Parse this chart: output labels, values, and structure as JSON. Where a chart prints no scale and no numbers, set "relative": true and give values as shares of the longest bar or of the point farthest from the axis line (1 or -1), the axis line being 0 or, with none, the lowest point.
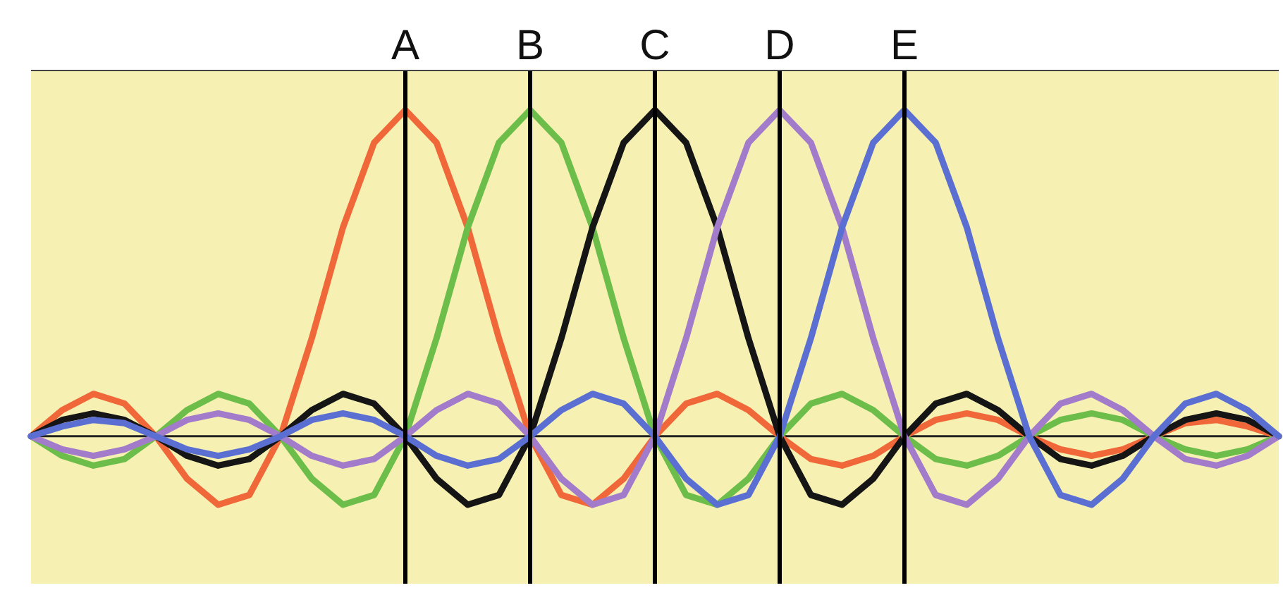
{
  "chart_data": {
    "type": "line",
    "relative": true,
    "tick_labels": "x",
    "marker": "none",
    "line_style": "solid",
    "categories": [
      null,
      null,
      null,
      null,
      null,
      null,
      null,
      null,
      null,
      null,
      null,
      null,
      "A",
      null,
      null,
      null,
      "B",
      null,
      null,
      null,
      "C",
      null,
      null,
      null,
      "D",
      null,
      null,
      null,
      "E",
      null,
      null,
      null,
      null,
      null,
      null,
      null,
      null,
      null,
      null,
      null,
      null
    ],
    "series": [
      {
        "color": "#f0683a",
        "values": [
          0,
          0.08,
          0.13,
          0.1,
          0,
          -0.13,
          -0.21,
          -0.18,
          0,
          0.3,
          0.64,
          0.9,
          1,
          0.9,
          0.64,
          0.3,
          0,
          -0.18,
          -0.21,
          -0.13,
          0,
          0.1,
          0.13,
          0.08,
          0,
          -0.07,
          -0.09,
          -0.06,
          0,
          0.05,
          0.07,
          0.05,
          0,
          -0.04,
          -0.06,
          -0.04,
          0,
          0.04,
          0.05,
          0.03,
          0
        ]
      },
      {
        "color": "#6cbd4a",
        "values": [
          0,
          -0.06,
          -0.09,
          -0.07,
          0,
          0.08,
          0.13,
          0.1,
          0,
          -0.13,
          -0.21,
          -0.18,
          0,
          0.3,
          0.64,
          0.9,
          1,
          0.9,
          0.64,
          0.3,
          0,
          -0.18,
          -0.21,
          -0.13,
          0,
          0.1,
          0.13,
          0.08,
          0,
          -0.07,
          -0.09,
          -0.06,
          0,
          0.05,
          0.07,
          0.05,
          0,
          -0.04,
          -0.06,
          -0.04,
          0
        ]
      },
      {
        "color": "#151515",
        "values": [
          0,
          0.05,
          0.07,
          0.05,
          0,
          -0.06,
          -0.09,
          -0.07,
          0,
          0.08,
          0.13,
          0.1,
          0,
          -0.13,
          -0.21,
          -0.18,
          0,
          0.3,
          0.64,
          0.9,
          1,
          0.9,
          0.64,
          0.3,
          0,
          -0.18,
          -0.21,
          -0.13,
          0,
          0.1,
          0.13,
          0.08,
          0,
          -0.07,
          -0.09,
          -0.06,
          0,
          0.05,
          0.07,
          0.05,
          0
        ]
      },
      {
        "color": "#a27ccb",
        "values": [
          0,
          -0.04,
          -0.06,
          -0.04,
          0,
          0.05,
          0.07,
          0.05,
          0,
          -0.06,
          -0.09,
          -0.07,
          0,
          0.08,
          0.13,
          0.1,
          0,
          -0.13,
          -0.21,
          -0.18,
          0,
          0.3,
          0.64,
          0.9,
          1,
          0.9,
          0.64,
          0.3,
          0,
          -0.18,
          -0.21,
          -0.13,
          0,
          0.1,
          0.13,
          0.08,
          0,
          -0.07,
          -0.09,
          -0.06,
          0
        ]
      },
      {
        "color": "#5b6fd2",
        "values": [
          0,
          0.03,
          0.05,
          0.04,
          0,
          -0.04,
          -0.06,
          -0.04,
          0,
          0.05,
          0.07,
          0.05,
          0,
          -0.06,
          -0.09,
          -0.07,
          0,
          0.08,
          0.13,
          0.1,
          0,
          -0.13,
          -0.21,
          -0.18,
          0,
          0.3,
          0.64,
          0.9,
          1,
          0.9,
          0.64,
          0.3,
          0,
          -0.18,
          -0.21,
          -0.13,
          0,
          0.1,
          0.13,
          0.08,
          0
        ]
      }
    ],
    "ref_lines": [
      {
        "axis": "x",
        "value": "A",
        "color": "#000000"
      },
      {
        "axis": "x",
        "value": "B",
        "color": "#000000"
      },
      {
        "axis": "x",
        "value": "C",
        "color": "#000000"
      },
      {
        "axis": "x",
        "value": "D",
        "color": "#000000"
      },
      {
        "axis": "x",
        "value": "E",
        "color": "#000000"
      }
    ]
  }
}
